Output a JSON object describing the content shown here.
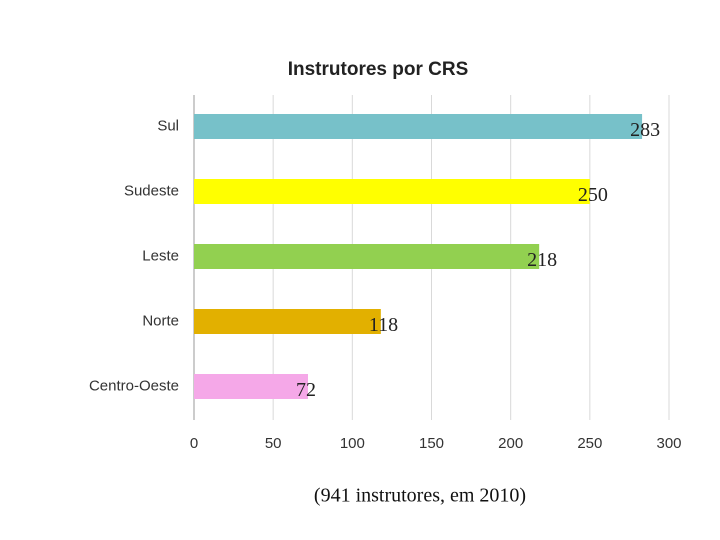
{
  "chart_data": {
    "type": "bar",
    "orientation": "horizontal",
    "title": "Instrutores por CRS",
    "categories": [
      "Sul",
      "Sudeste",
      "Leste",
      "Norte",
      "Centro-Oeste"
    ],
    "values": [
      283,
      250,
      218,
      118,
      72
    ],
    "colors": [
      "#77c1c9",
      "#ffff00",
      "#92d050",
      "#e2b000",
      "#f5a8e8"
    ],
    "xlim": [
      0,
      300
    ],
    "xticks": [
      0,
      50,
      100,
      150,
      200,
      250,
      300
    ],
    "grid": true,
    "footnote": "(941 instrutores, em 2010)"
  }
}
